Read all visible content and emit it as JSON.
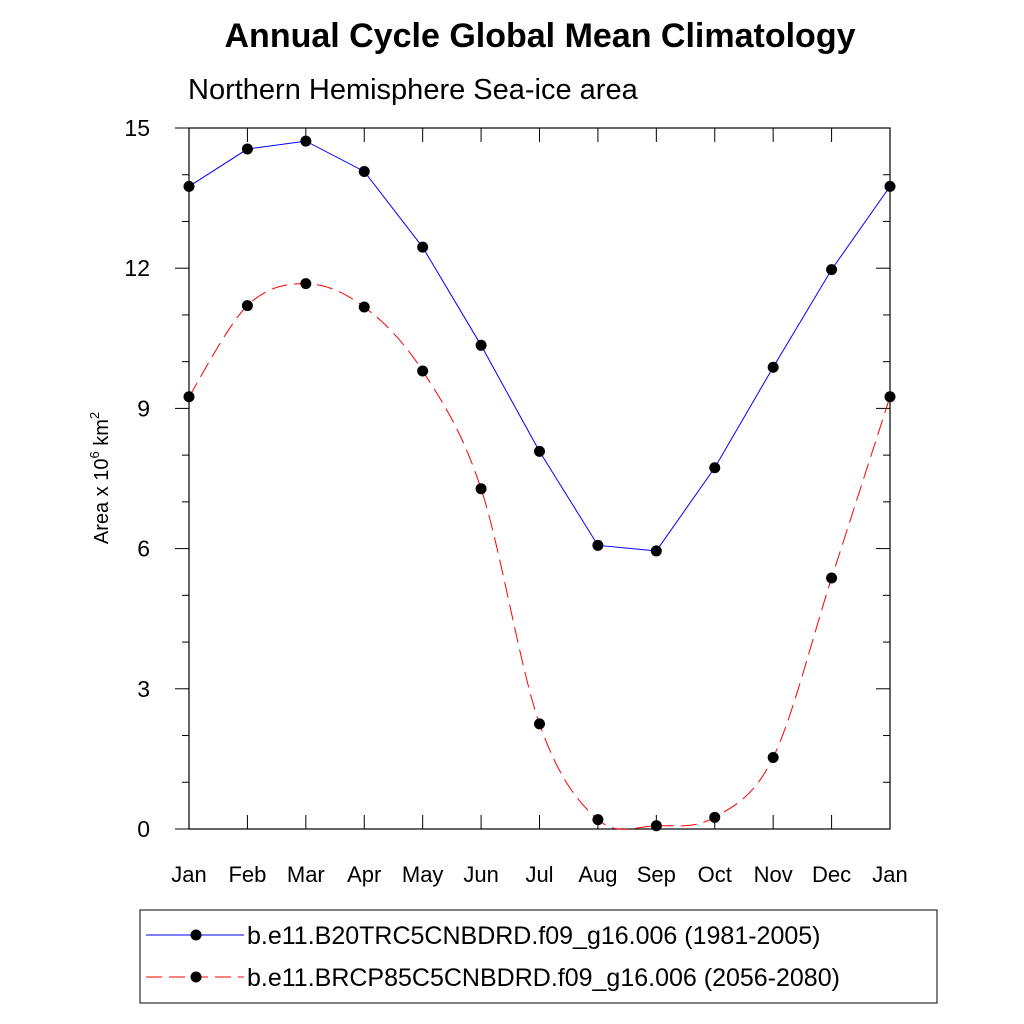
{
  "chart_data": {
    "type": "line",
    "title": "Annual Cycle Global Mean Climatology",
    "subtitle": "Northern Hemisphere Sea-ice area",
    "ylabel_main": "Area x 10",
    "ylabel_exp": "6",
    "ylabel_unit": " km",
    "ylabel_unit_exp": "2",
    "categories": [
      "Jan",
      "Feb",
      "Mar",
      "Apr",
      "May",
      "Jun",
      "Jul",
      "Aug",
      "Sep",
      "Oct",
      "Nov",
      "Dec",
      "Jan"
    ],
    "ylim": [
      0,
      15
    ],
    "yticks": [
      "0",
      "3",
      "6",
      "9",
      "12",
      "15"
    ],
    "series": [
      {
        "name": "b.e11.B20TRC5CNBDRD.f09_g16.006 (1981-2005)",
        "color": "#0000ff",
        "dash": "solid",
        "values": [
          13.75,
          14.55,
          14.72,
          14.07,
          12.45,
          10.35,
          8.08,
          6.07,
          5.95,
          7.73,
          9.88,
          11.97,
          13.75
        ]
      },
      {
        "name": "b.e11.BRCP85C5CNBDRD.f09_g16.006 (2056-2080)",
        "color": "#ff0000",
        "dash": "dashed",
        "values": [
          9.25,
          11.2,
          11.67,
          11.17,
          9.8,
          7.28,
          2.25,
          0.2,
          0.07,
          0.25,
          1.53,
          5.37,
          9.25
        ]
      }
    ],
    "grid": false,
    "legend_position": "bottom"
  }
}
